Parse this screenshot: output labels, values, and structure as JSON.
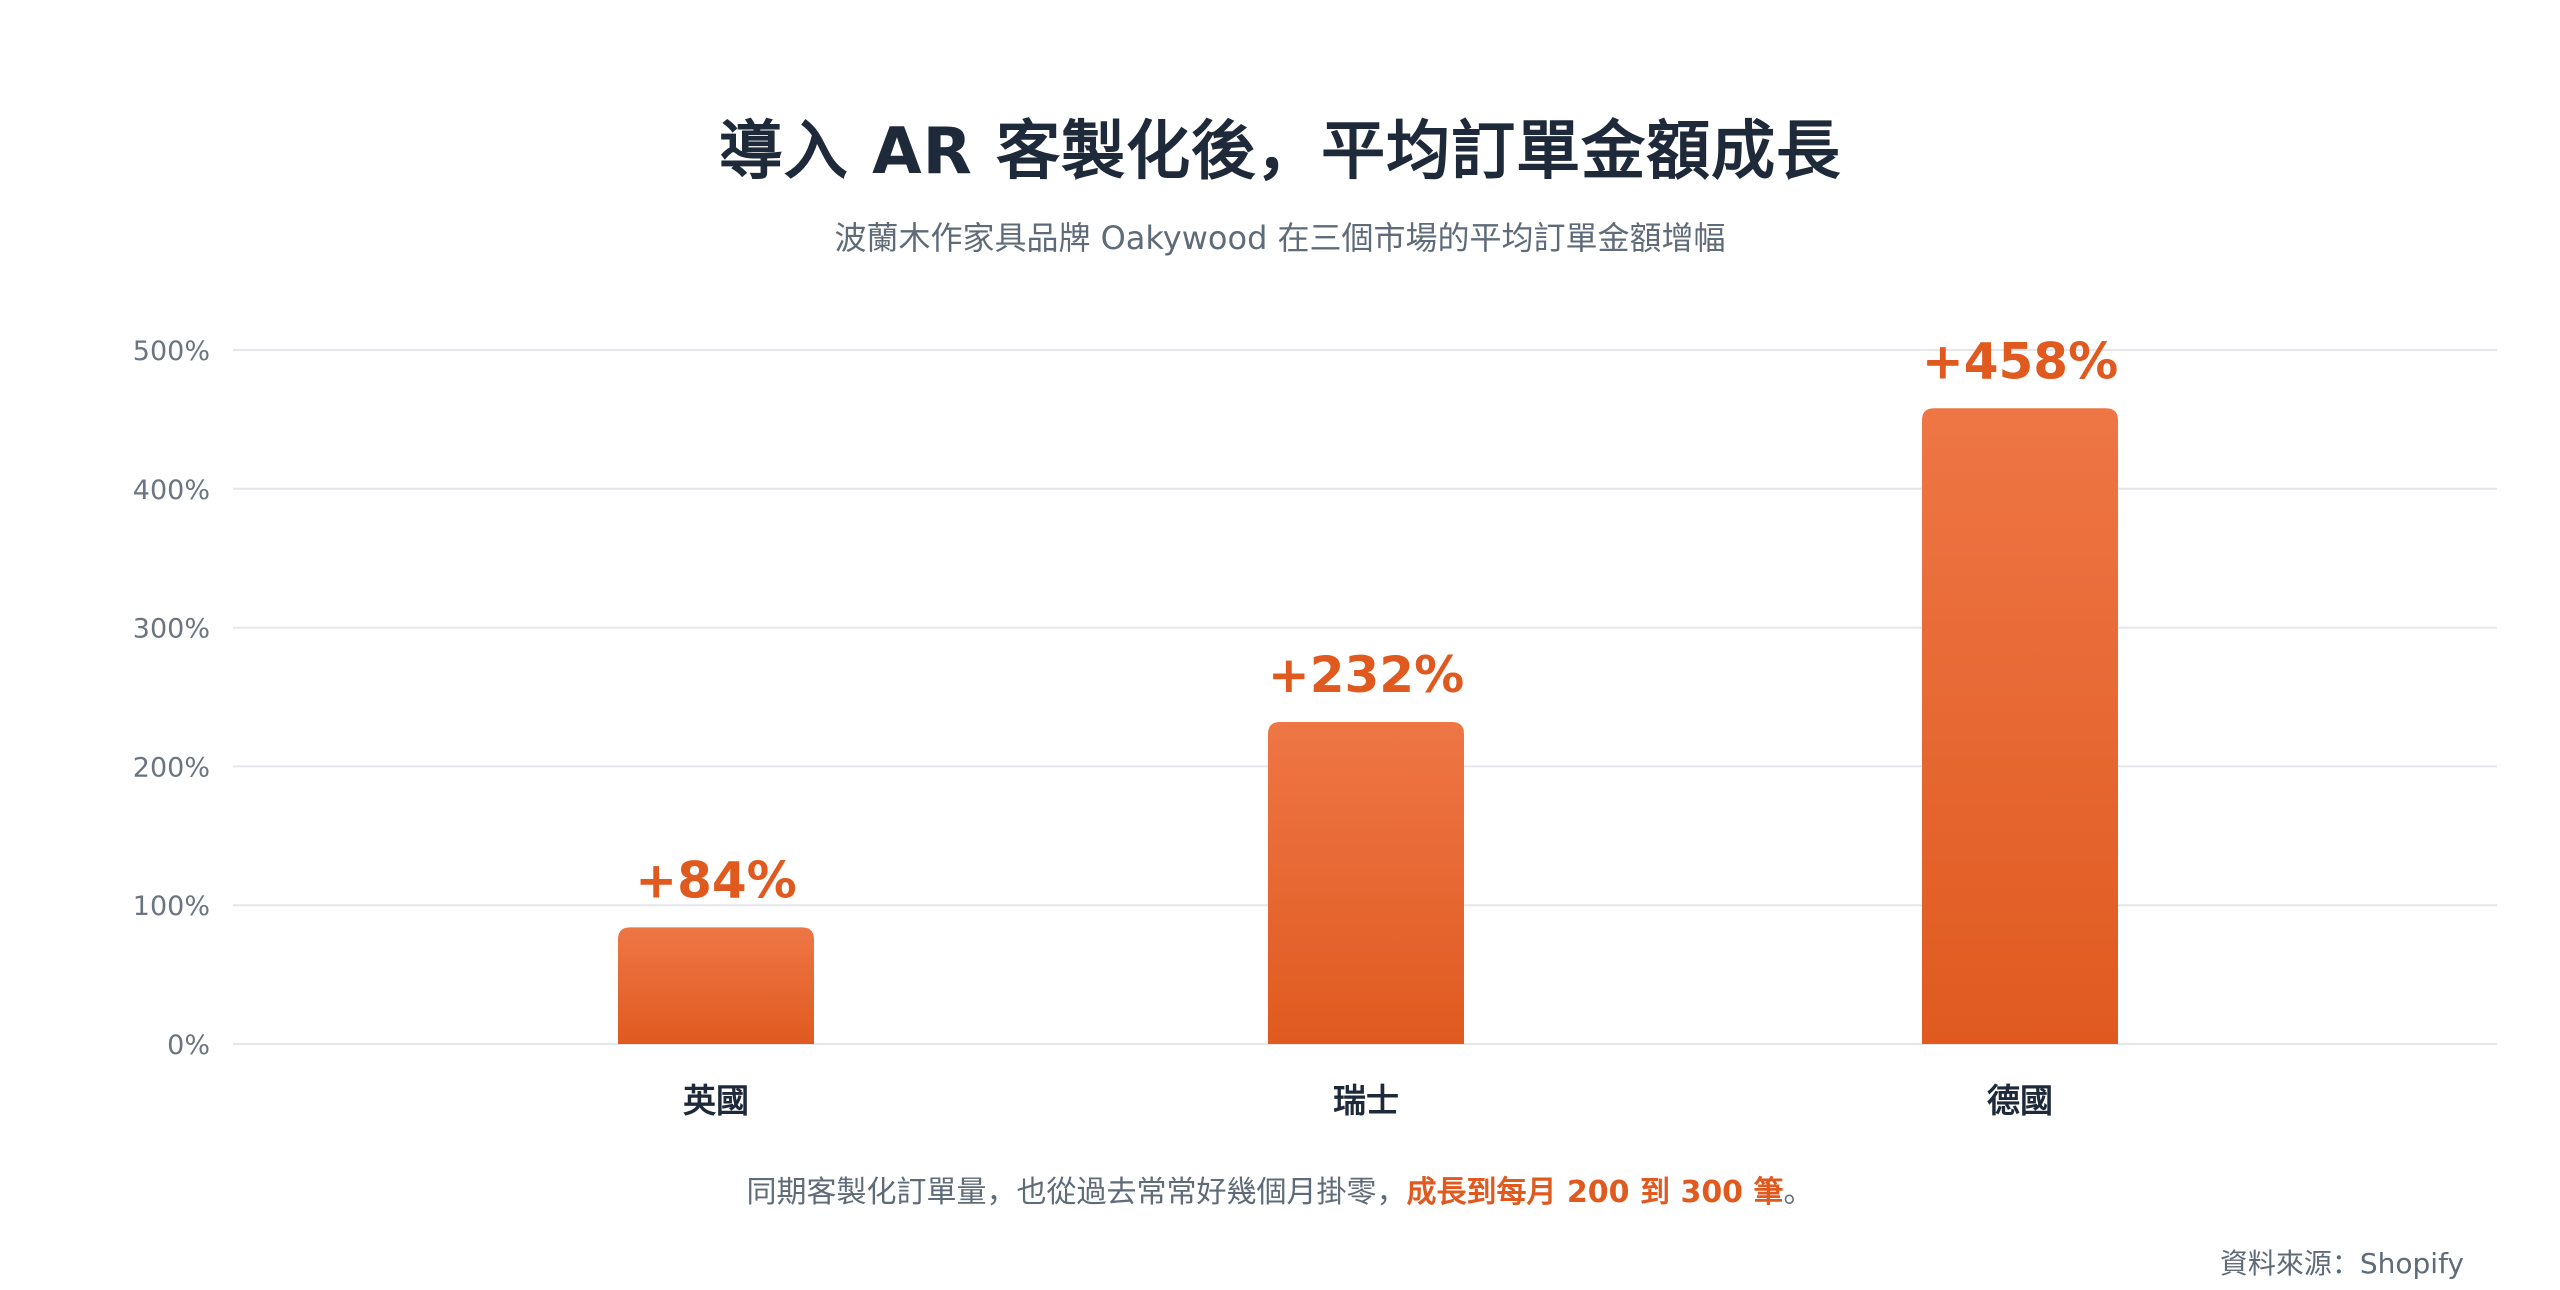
{
  "title": "導入 AR 客製化後，平均訂單金額成長",
  "subtitle": "波蘭木作家具品牌 Oakywood 在三個市場的平均訂單金額增幅",
  "footnote": {
    "prefix": "同期客製化訂單量，也從過去常常好幾個月掛零，",
    "highlight": "成長到每月 200 到 300 筆",
    "suffix": "。"
  },
  "source": "資料來源：Shopify",
  "colors": {
    "bar_top": "#ee7645",
    "bar_bottom": "#e05a20",
    "label": "#e05a20",
    "grid": "#e3e6ea",
    "tick": "#6b7480",
    "category": "#1e2a3a"
  },
  "chart_data": {
    "type": "bar",
    "categories": [
      "英國",
      "瑞士",
      "德國"
    ],
    "values": [
      84,
      232,
      458
    ],
    "data_labels": [
      "+84%",
      "+232%",
      "+458%"
    ],
    "ylim": [
      0,
      500
    ],
    "yticks": [
      0,
      100,
      200,
      300,
      400,
      500
    ],
    "ytick_labels": [
      "0%",
      "100%",
      "200%",
      "300%",
      "400%",
      "500%"
    ],
    "grid": true,
    "xlabel": "",
    "ylabel": ""
  }
}
